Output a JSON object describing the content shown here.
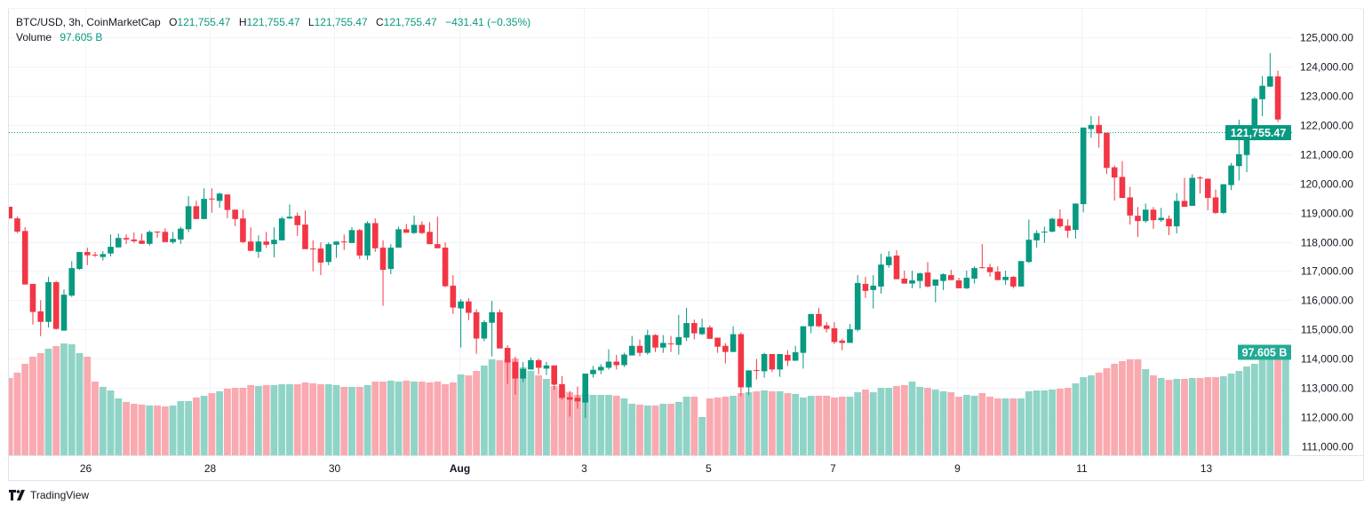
{
  "legend": {
    "symbol": "BTC/USD, 3h, CoinMarketCap",
    "o_label": "O",
    "o_value": "121,755.47",
    "h_label": "H",
    "h_value": "121,755.47",
    "l_label": "L",
    "l_value": "121,755.47",
    "c_label": "C",
    "c_value": "121,755.47",
    "change": "−431.41 (−0.35%)",
    "volume_label": "Volume",
    "volume_value": "97.605 B"
  },
  "brand": {
    "name": "TradingView",
    "icon": "tradingview-logo-icon"
  },
  "colors": {
    "up": "#089981",
    "down": "#F23645",
    "volume_up": "#8fd4c7",
    "volume_down": "#f9a9b0",
    "grid": "#f0f3fa",
    "text": "#131722"
  },
  "chart_data": {
    "type": "candlestick",
    "title": "BTC/USD, 3h, CoinMarketCap",
    "grid": true,
    "ylim": [
      110700,
      125500
    ],
    "yticks": [
      "125,000.00",
      "124,000.00",
      "123,000.00",
      "122,000.00",
      "121,000.00",
      "120,000.00",
      "119,000.00",
      "118,000.00",
      "117,000.00",
      "116,000.00",
      "115,000.00",
      "114,000.00",
      "113,000.00",
      "112,000.00",
      "111,000.00"
    ],
    "ytick_values": [
      125000,
      124000,
      123000,
      122000,
      121000,
      120000,
      119000,
      118000,
      117000,
      116000,
      115000,
      114000,
      113000,
      112000,
      111000
    ],
    "xticks": [
      {
        "label": "26",
        "candle": 11
      },
      {
        "label": "28",
        "candle": 27
      },
      {
        "label": "30",
        "candle": 43
      },
      {
        "label": "Aug",
        "candle": 59
      },
      {
        "label": "3",
        "candle": 75
      },
      {
        "label": "5",
        "candle": 91
      },
      {
        "label": "7",
        "candle": 107
      },
      {
        "label": "9",
        "candle": 123
      },
      {
        "label": "11",
        "candle": 139
      },
      {
        "label": "13",
        "candle": 155
      }
    ],
    "last_price": 121755.47,
    "last_price_label": "121,755.47",
    "last_volume_label": "97.605 B",
    "volume_unit": "B",
    "ohlc_columns": [
      "open",
      "high",
      "low",
      "close"
    ],
    "candles": [
      [
        119200,
        119200,
        118800,
        118800
      ],
      [
        118800,
        118860,
        118300,
        118350
      ],
      [
        118370,
        118500,
        116540,
        116540
      ],
      [
        116560,
        116560,
        115170,
        115600
      ],
      [
        115620,
        116000,
        114770,
        115260
      ],
      [
        115260,
        116800,
        115070,
        116620
      ],
      [
        116620,
        116660,
        115000,
        115020
      ],
      [
        114960,
        116370,
        114960,
        116190
      ],
      [
        116160,
        117340,
        116110,
        117100
      ],
      [
        117070,
        117650,
        117040,
        117650
      ],
      [
        117650,
        117800,
        117200,
        117540
      ],
      [
        117560,
        117650,
        117480,
        117540
      ],
      [
        117480,
        117680,
        117360,
        117580
      ],
      [
        117600,
        118250,
        117500,
        117830
      ],
      [
        117810,
        118280,
        117800,
        118130
      ],
      [
        118130,
        118250,
        117930,
        118080
      ],
      [
        118080,
        118320,
        117960,
        118020
      ],
      [
        118040,
        118280,
        117930,
        117930
      ],
      [
        117930,
        118390,
        117870,
        118340
      ],
      [
        118350,
        118360,
        118140,
        118330
      ],
      [
        118340,
        118460,
        117990,
        117990
      ],
      [
        117990,
        118340,
        117930,
        118100
      ],
      [
        118080,
        118520,
        117930,
        118450
      ],
      [
        118430,
        119560,
        118330,
        119220
      ],
      [
        119220,
        119400,
        118780,
        118780
      ],
      [
        118780,
        119830,
        118780,
        119470
      ],
      [
        119480,
        119830,
        119000,
        119460
      ],
      [
        119400,
        119680,
        119160,
        119650
      ],
      [
        119620,
        119620,
        118810,
        119090
      ],
      [
        119100,
        119100,
        118540,
        118780
      ],
      [
        118800,
        119100,
        117950,
        117990
      ],
      [
        118010,
        118500,
        117690,
        117690
      ],
      [
        117660,
        118220,
        117450,
        118010
      ],
      [
        118010,
        118340,
        117800,
        117900
      ],
      [
        117920,
        118500,
        117470,
        118070
      ],
      [
        118050,
        118860,
        118050,
        118800
      ],
      [
        118800,
        119280,
        118780,
        118860
      ],
      [
        118890,
        119000,
        118200,
        118570
      ],
      [
        118590,
        119070,
        117750,
        117750
      ],
      [
        117770,
        118050,
        116990,
        117750
      ],
      [
        117770,
        117980,
        116860,
        117290
      ],
      [
        117310,
        117980,
        117200,
        117920
      ],
      [
        117900,
        118010,
        117450,
        118010
      ],
      [
        118010,
        118250,
        117720,
        117980
      ],
      [
        117960,
        118500,
        117960,
        118400
      ],
      [
        118400,
        118440,
        117410,
        117530
      ],
      [
        117530,
        118700,
        117380,
        118640
      ],
      [
        118640,
        118800,
        117660,
        117780
      ],
      [
        117800,
        118050,
        115810,
        117040
      ],
      [
        117070,
        117920,
        116890,
        117800
      ],
      [
        117800,
        118520,
        117800,
        118430
      ],
      [
        118430,
        118610,
        118310,
        118310
      ],
      [
        118300,
        118900,
        118270,
        118580
      ],
      [
        118580,
        118700,
        118270,
        118300
      ],
      [
        118340,
        118670,
        117920,
        117920
      ],
      [
        117920,
        118860,
        117780,
        117780
      ],
      [
        117800,
        117980,
        116450,
        116480
      ],
      [
        116500,
        116860,
        115530,
        115750
      ],
      [
        115720,
        116040,
        114380,
        115960
      ],
      [
        115960,
        116070,
        115320,
        115570
      ],
      [
        115590,
        115690,
        114170,
        114690
      ],
      [
        114690,
        115320,
        114600,
        115250
      ],
      [
        115230,
        115980,
        114080,
        115590
      ],
      [
        115590,
        115680,
        114350,
        114350
      ],
      [
        114370,
        114460,
        113140,
        113870
      ],
      [
        113890,
        114070,
        112770,
        113320
      ],
      [
        113320,
        113890,
        113200,
        113650
      ],
      [
        113630,
        114040,
        113630,
        113950
      ],
      [
        113950,
        114010,
        113470,
        113690
      ],
      [
        113660,
        113890,
        113440,
        113770
      ],
      [
        113770,
        113770,
        112930,
        113110
      ],
      [
        113130,
        113400,
        112600,
        112660
      ],
      [
        112680,
        112900,
        112020,
        112600
      ],
      [
        112660,
        113050,
        112290,
        112540
      ],
      [
        112500,
        113490,
        111970,
        113490
      ],
      [
        113470,
        113750,
        113350,
        113620
      ],
      [
        113600,
        113810,
        113470,
        113720
      ],
      [
        113690,
        114320,
        113630,
        113900
      ],
      [
        113900,
        114130,
        113630,
        113780
      ],
      [
        113780,
        114200,
        113720,
        114140
      ],
      [
        114110,
        114780,
        114110,
        114440
      ],
      [
        114440,
        114660,
        114080,
        114200
      ],
      [
        114200,
        114990,
        114140,
        114810
      ],
      [
        114810,
        114840,
        114230,
        114380
      ],
      [
        114380,
        114810,
        114200,
        114540
      ],
      [
        114520,
        114780,
        114230,
        114500
      ],
      [
        114470,
        115500,
        114140,
        114740
      ],
      [
        114720,
        115740,
        114600,
        115220
      ],
      [
        115220,
        115340,
        114660,
        114870
      ],
      [
        114840,
        115370,
        114810,
        115070
      ],
      [
        115070,
        115140,
        114680,
        114680
      ],
      [
        114720,
        114720,
        114200,
        114410
      ],
      [
        114440,
        114530,
        113840,
        114230
      ],
      [
        114230,
        115110,
        114230,
        114840
      ],
      [
        114840,
        114900,
        112720,
        113020
      ],
      [
        113020,
        113600,
        112750,
        113600
      ],
      [
        113610,
        113990,
        113290,
        113580
      ],
      [
        113570,
        114200,
        113350,
        114160
      ],
      [
        114160,
        114160,
        113540,
        113630
      ],
      [
        113630,
        114160,
        113380,
        114160
      ],
      [
        114130,
        114290,
        113750,
        113930
      ],
      [
        113930,
        114440,
        113930,
        114220
      ],
      [
        114200,
        115110,
        113660,
        115110
      ],
      [
        115110,
        115530,
        114870,
        115530
      ],
      [
        115530,
        115740,
        115080,
        115110
      ],
      [
        115140,
        115250,
        114900,
        115020
      ],
      [
        115040,
        115250,
        114500,
        114570
      ],
      [
        114620,
        114680,
        114290,
        114540
      ],
      [
        114540,
        115190,
        114540,
        115010
      ],
      [
        114990,
        116860,
        114930,
        116590
      ],
      [
        116560,
        116800,
        116080,
        116320
      ],
      [
        116350,
        116860,
        115720,
        116500
      ],
      [
        116470,
        117590,
        116230,
        117220
      ],
      [
        117200,
        117680,
        117110,
        117490
      ],
      [
        117530,
        117710,
        116720,
        116720
      ],
      [
        116740,
        117010,
        116570,
        116570
      ],
      [
        116570,
        117010,
        116410,
        116680
      ],
      [
        116660,
        116950,
        116410,
        116920
      ],
      [
        116950,
        117310,
        116440,
        116470
      ],
      [
        116500,
        116710,
        115930,
        116710
      ],
      [
        116660,
        116920,
        116350,
        116890
      ],
      [
        116860,
        117040,
        116690,
        116690
      ],
      [
        116680,
        116770,
        116410,
        116410
      ],
      [
        116410,
        117010,
        116380,
        116770
      ],
      [
        116740,
        117160,
        116570,
        117100
      ],
      [
        117130,
        117920,
        117080,
        117100
      ],
      [
        117130,
        117250,
        116810,
        116960
      ],
      [
        116980,
        117160,
        116690,
        116690
      ],
      [
        116690,
        117010,
        116530,
        116800
      ],
      [
        116800,
        116830,
        116410,
        116470
      ],
      [
        116470,
        117340,
        116470,
        117340
      ],
      [
        117310,
        118760,
        117280,
        118070
      ],
      [
        118050,
        118400,
        117800,
        118300
      ],
      [
        118320,
        118520,
        117960,
        118350
      ],
      [
        118350,
        118820,
        118320,
        118790
      ],
      [
        118790,
        119110,
        118470,
        118530
      ],
      [
        118550,
        118770,
        118130,
        118380
      ],
      [
        118410,
        119310,
        118110,
        119310
      ],
      [
        119290,
        121910,
        119010,
        121910
      ],
      [
        121860,
        122300,
        121560,
        122000
      ],
      [
        122000,
        122300,
        121220,
        121710
      ],
      [
        121730,
        121730,
        120320,
        120530
      ],
      [
        120550,
        120610,
        119410,
        120200
      ],
      [
        120220,
        120760,
        119500,
        119500
      ],
      [
        119520,
        119880,
        118590,
        118900
      ],
      [
        118890,
        119190,
        118170,
        118710
      ],
      [
        118710,
        119310,
        118650,
        119100
      ],
      [
        119100,
        119190,
        118440,
        118740
      ],
      [
        118740,
        119160,
        118680,
        118820
      ],
      [
        118790,
        118900,
        118230,
        118530
      ],
      [
        118530,
        119670,
        118290,
        119400
      ],
      [
        119400,
        120190,
        119200,
        119200
      ],
      [
        119230,
        120310,
        119230,
        120190
      ],
      [
        120200,
        120250,
        119650,
        120170
      ],
      [
        120160,
        120160,
        119080,
        119500
      ],
      [
        119520,
        119790,
        118960,
        118990
      ],
      [
        118990,
        119970,
        118960,
        119970
      ],
      [
        119940,
        120700,
        119770,
        120610
      ],
      [
        120590,
        122180,
        120100,
        121000
      ],
      [
        120970,
        121850,
        120380,
        121850
      ],
      [
        121820,
        122960,
        121470,
        122900
      ],
      [
        122880,
        123670,
        122300,
        123340
      ],
      [
        123310,
        124460,
        123300,
        123660
      ],
      [
        123660,
        123860,
        122100,
        122186.88
      ],
      [
        121755.47,
        121755.47,
        121755.47,
        121755.47
      ]
    ],
    "volume": [
      73.2,
      78.3,
      86.7,
      93.4,
      96.8,
      101.0,
      103.5,
      106.0,
      105.2,
      96.8,
      93.4,
      69.8,
      64.8,
      61.4,
      53.9,
      50.5,
      48.8,
      48.0,
      47.1,
      47.1,
      46.3,
      47.1,
      51.3,
      51.3,
      54.7,
      56.4,
      58.9,
      60.6,
      63.1,
      63.9,
      63.9,
      66.5,
      65.6,
      66.5,
      66.5,
      67.3,
      67.3,
      67.3,
      69.0,
      68.2,
      67.3,
      67.3,
      66.5,
      64.8,
      64.8,
      64.8,
      66.5,
      69.8,
      69.8,
      70.7,
      69.8,
      70.7,
      69.8,
      69.8,
      69.0,
      69.8,
      67.3,
      69.0,
      76.6,
      75.7,
      79.9,
      85.0,
      90.9,
      90.0,
      90.9,
      91.7,
      83.3,
      79.9,
      75.7,
      72.4,
      65.6,
      62.3,
      59.7,
      57.2,
      58.1,
      57.2,
      57.2,
      57.2,
      56.4,
      53.9,
      48.8,
      48.0,
      47.1,
      47.1,
      48.8,
      48.8,
      50.5,
      55.5,
      55.5,
      36.2,
      53.9,
      54.7,
      55.5,
      56.4,
      58.9,
      59.7,
      60.6,
      61.4,
      60.6,
      60.6,
      58.9,
      58.1,
      54.7,
      56.4,
      56.4,
      56.4,
      54.7,
      55.5,
      55.5,
      59.7,
      62.3,
      59.7,
      63.9,
      63.9,
      65.6,
      66.5,
      69.8,
      64.8,
      63.9,
      62.3,
      60.6,
      59.7,
      55.5,
      57.2,
      56.4,
      58.9,
      55.5,
      53.9,
      53.9,
      53.9,
      53.9,
      60.6,
      61.4,
      61.4,
      62.3,
      63.1,
      63.9,
      68.2,
      74.0,
      75.7,
      78.3,
      82.5,
      86.7,
      89.2,
      90.9,
      90.9,
      81.6,
      75.7,
      73.2,
      71.5,
      72.4,
      72.4,
      73.2,
      73.2,
      74.0,
      74.0,
      74.9,
      77.4,
      79.9,
      84.1,
      86.7,
      90.9,
      96.8,
      96.8,
      97.605
    ]
  }
}
